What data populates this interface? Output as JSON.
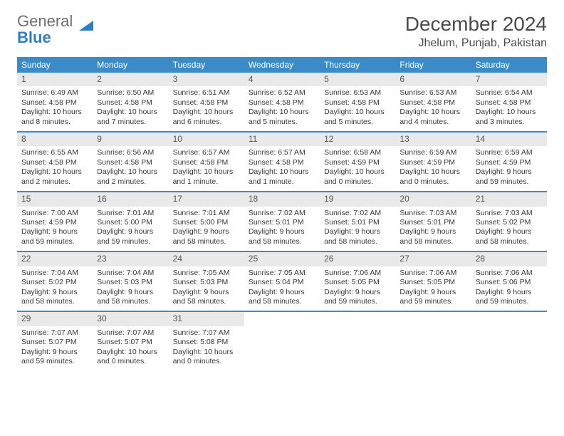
{
  "logo": {
    "text1": "General",
    "text2": "Blue"
  },
  "title": "December 2024",
  "location": "Jhelum, Punjab, Pakistan",
  "colors": {
    "header_bg": "#3b8bc9",
    "header_text": "#ffffff",
    "daynum_bg": "#e9e9e9",
    "text": "#383838",
    "rule": "#3b8bc9",
    "logo_gray": "#6f6f6f",
    "logo_blue": "#2f7fbf"
  },
  "weekdays": [
    "Sunday",
    "Monday",
    "Tuesday",
    "Wednesday",
    "Thursday",
    "Friday",
    "Saturday"
  ],
  "weeks": [
    [
      {
        "n": "1",
        "sr": "6:49 AM",
        "ss": "4:58 PM",
        "dl": "10 hours and 8 minutes."
      },
      {
        "n": "2",
        "sr": "6:50 AM",
        "ss": "4:58 PM",
        "dl": "10 hours and 7 minutes."
      },
      {
        "n": "3",
        "sr": "6:51 AM",
        "ss": "4:58 PM",
        "dl": "10 hours and 6 minutes."
      },
      {
        "n": "4",
        "sr": "6:52 AM",
        "ss": "4:58 PM",
        "dl": "10 hours and 5 minutes."
      },
      {
        "n": "5",
        "sr": "6:53 AM",
        "ss": "4:58 PM",
        "dl": "10 hours and 5 minutes."
      },
      {
        "n": "6",
        "sr": "6:53 AM",
        "ss": "4:58 PM",
        "dl": "10 hours and 4 minutes."
      },
      {
        "n": "7",
        "sr": "6:54 AM",
        "ss": "4:58 PM",
        "dl": "10 hours and 3 minutes."
      }
    ],
    [
      {
        "n": "8",
        "sr": "6:55 AM",
        "ss": "4:58 PM",
        "dl": "10 hours and 2 minutes."
      },
      {
        "n": "9",
        "sr": "6:56 AM",
        "ss": "4:58 PM",
        "dl": "10 hours and 2 minutes."
      },
      {
        "n": "10",
        "sr": "6:57 AM",
        "ss": "4:58 PM",
        "dl": "10 hours and 1 minute."
      },
      {
        "n": "11",
        "sr": "6:57 AM",
        "ss": "4:58 PM",
        "dl": "10 hours and 1 minute."
      },
      {
        "n": "12",
        "sr": "6:58 AM",
        "ss": "4:59 PM",
        "dl": "10 hours and 0 minutes."
      },
      {
        "n": "13",
        "sr": "6:59 AM",
        "ss": "4:59 PM",
        "dl": "10 hours and 0 minutes."
      },
      {
        "n": "14",
        "sr": "6:59 AM",
        "ss": "4:59 PM",
        "dl": "9 hours and 59 minutes."
      }
    ],
    [
      {
        "n": "15",
        "sr": "7:00 AM",
        "ss": "4:59 PM",
        "dl": "9 hours and 59 minutes."
      },
      {
        "n": "16",
        "sr": "7:01 AM",
        "ss": "5:00 PM",
        "dl": "9 hours and 59 minutes."
      },
      {
        "n": "17",
        "sr": "7:01 AM",
        "ss": "5:00 PM",
        "dl": "9 hours and 58 minutes."
      },
      {
        "n": "18",
        "sr": "7:02 AM",
        "ss": "5:01 PM",
        "dl": "9 hours and 58 minutes."
      },
      {
        "n": "19",
        "sr": "7:02 AM",
        "ss": "5:01 PM",
        "dl": "9 hours and 58 minutes."
      },
      {
        "n": "20",
        "sr": "7:03 AM",
        "ss": "5:01 PM",
        "dl": "9 hours and 58 minutes."
      },
      {
        "n": "21",
        "sr": "7:03 AM",
        "ss": "5:02 PM",
        "dl": "9 hours and 58 minutes."
      }
    ],
    [
      {
        "n": "22",
        "sr": "7:04 AM",
        "ss": "5:02 PM",
        "dl": "9 hours and 58 minutes."
      },
      {
        "n": "23",
        "sr": "7:04 AM",
        "ss": "5:03 PM",
        "dl": "9 hours and 58 minutes."
      },
      {
        "n": "24",
        "sr": "7:05 AM",
        "ss": "5:03 PM",
        "dl": "9 hours and 58 minutes."
      },
      {
        "n": "25",
        "sr": "7:05 AM",
        "ss": "5:04 PM",
        "dl": "9 hours and 58 minutes."
      },
      {
        "n": "26",
        "sr": "7:06 AM",
        "ss": "5:05 PM",
        "dl": "9 hours and 59 minutes."
      },
      {
        "n": "27",
        "sr": "7:06 AM",
        "ss": "5:05 PM",
        "dl": "9 hours and 59 minutes."
      },
      {
        "n": "28",
        "sr": "7:06 AM",
        "ss": "5:06 PM",
        "dl": "9 hours and 59 minutes."
      }
    ],
    [
      {
        "n": "29",
        "sr": "7:07 AM",
        "ss": "5:07 PM",
        "dl": "9 hours and 59 minutes."
      },
      {
        "n": "30",
        "sr": "7:07 AM",
        "ss": "5:07 PM",
        "dl": "10 hours and 0 minutes."
      },
      {
        "n": "31",
        "sr": "7:07 AM",
        "ss": "5:08 PM",
        "dl": "10 hours and 0 minutes."
      },
      null,
      null,
      null,
      null
    ]
  ],
  "labels": {
    "sunrise": "Sunrise: ",
    "sunset": "Sunset: ",
    "daylight": "Daylight: "
  }
}
